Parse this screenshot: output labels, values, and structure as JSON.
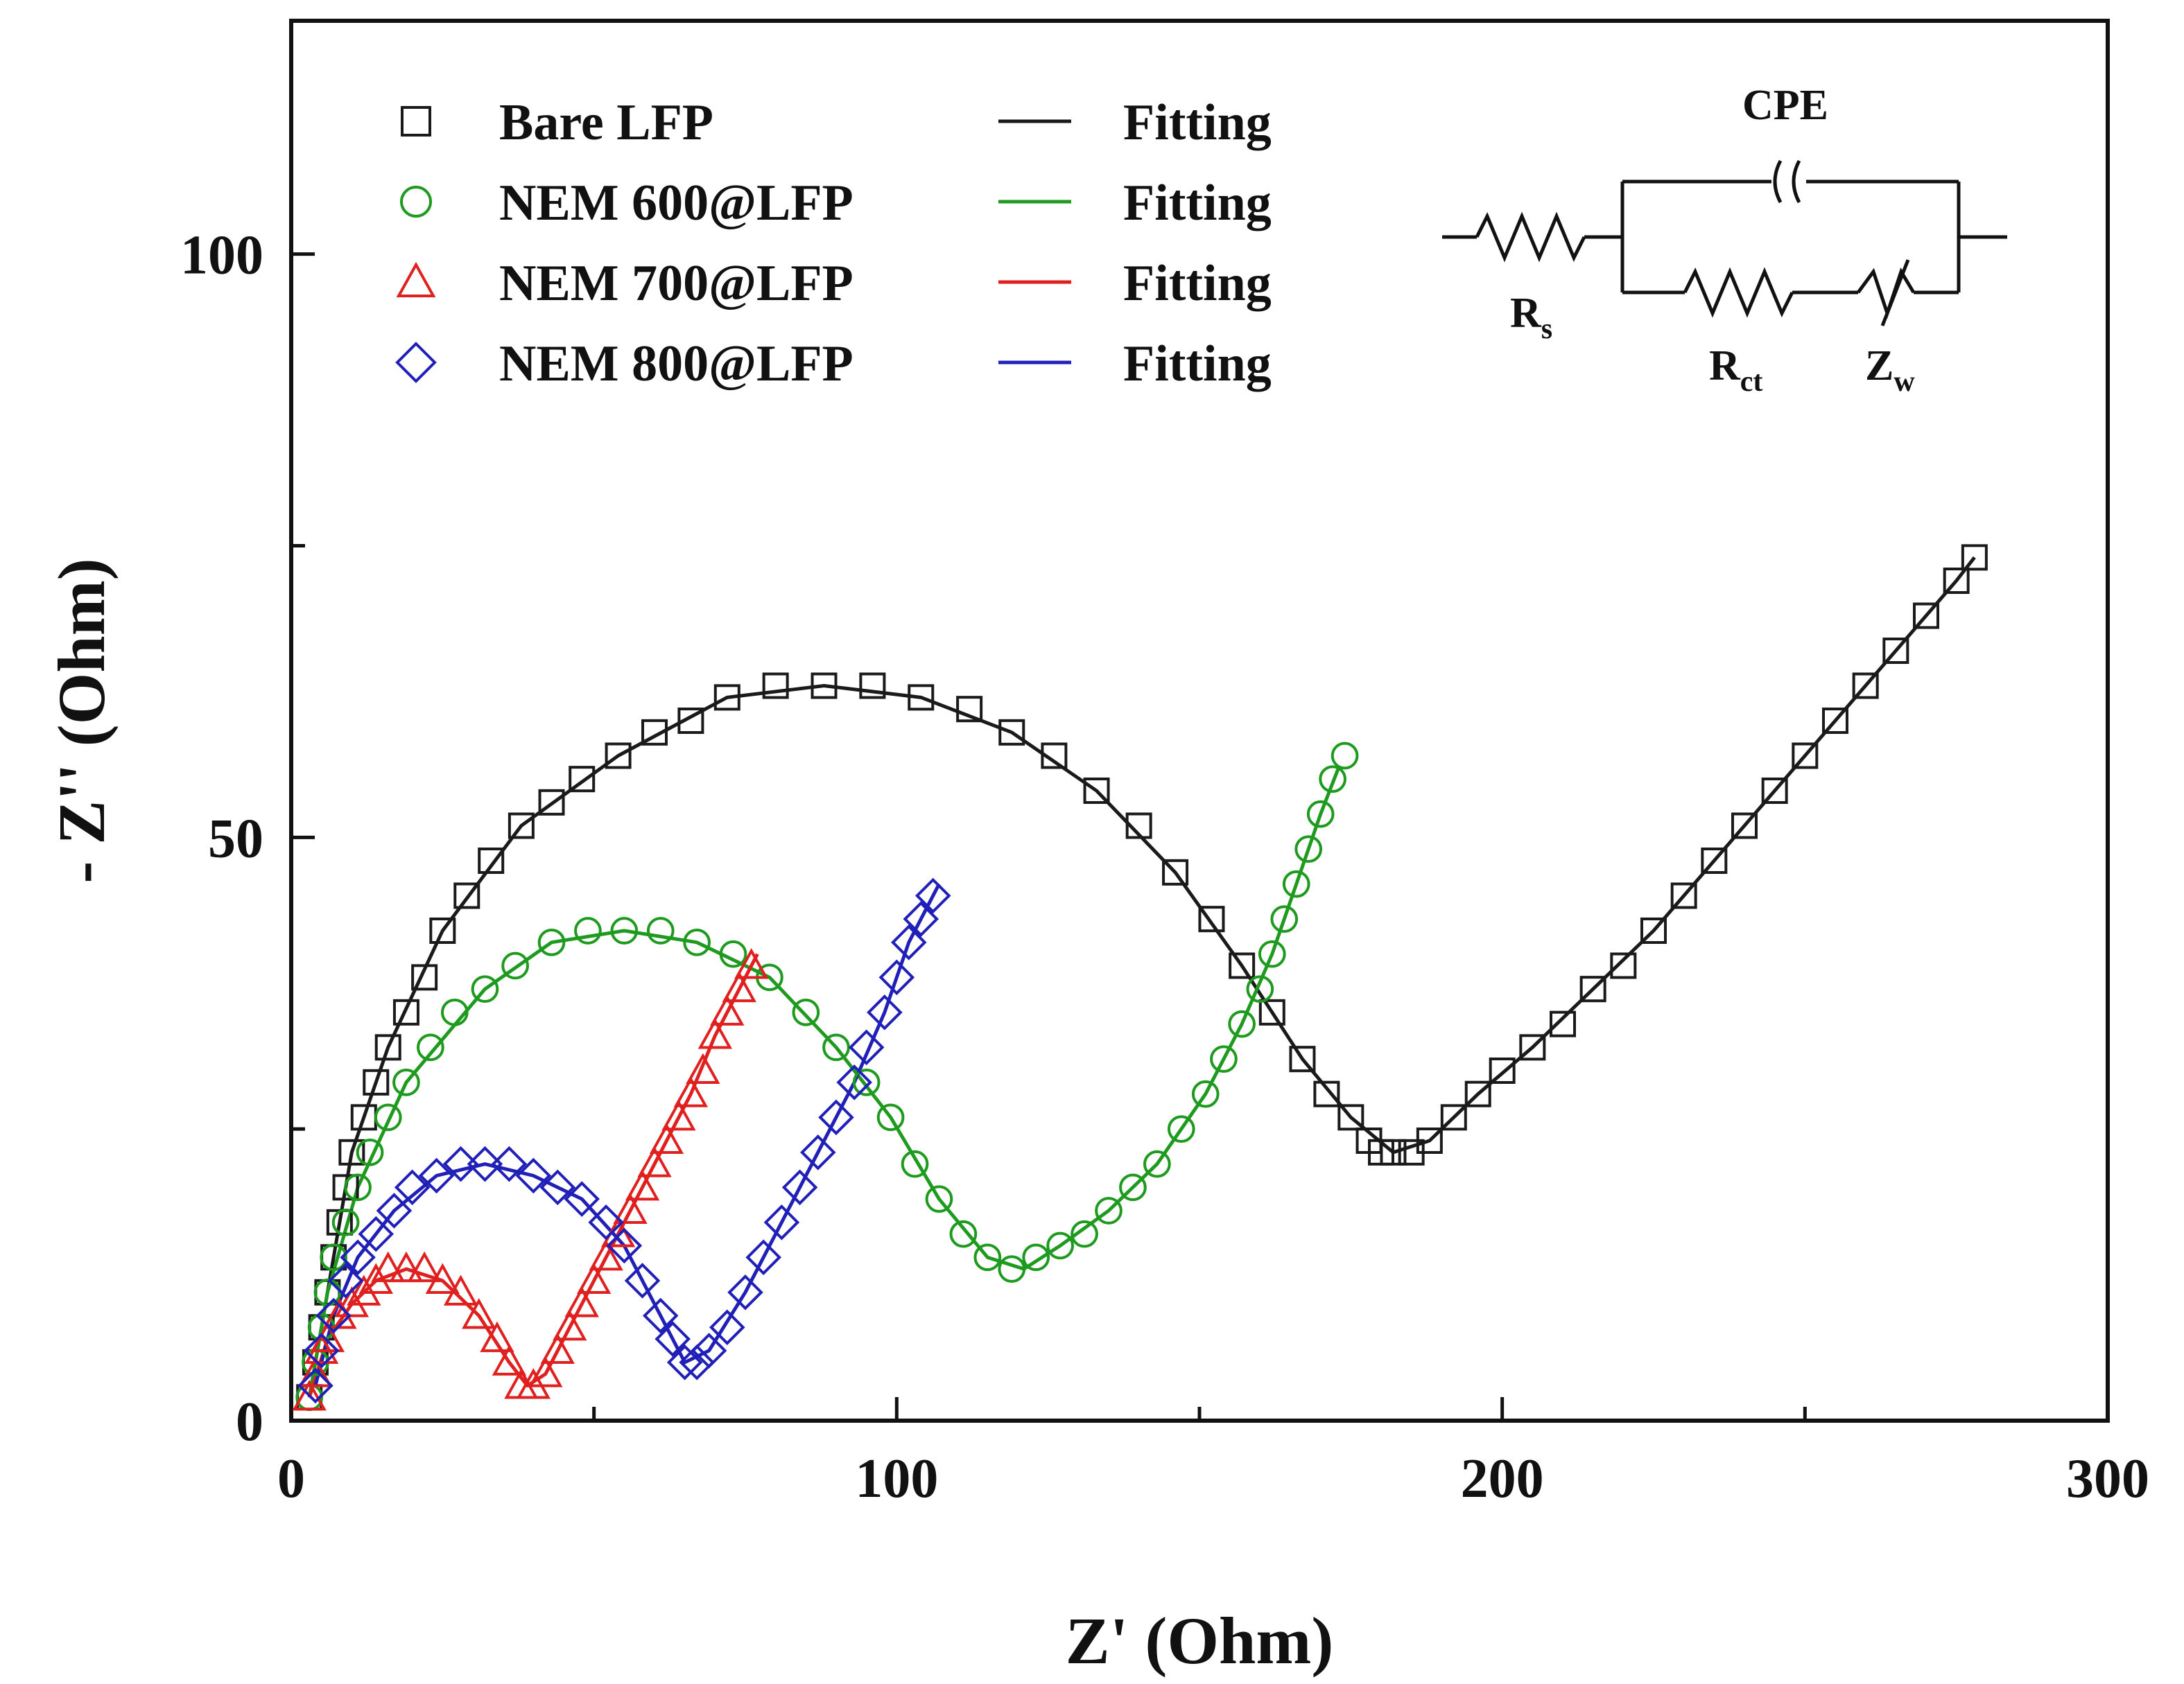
{
  "chart_data": {
    "type": "scatter",
    "xlabel": "Z' (Ohm)",
    "ylabel": "- Z'' (Ohm)",
    "xlim": [
      0,
      300
    ],
    "ylim": [
      0,
      120
    ],
    "x_ticks": [
      0,
      100,
      200,
      300
    ],
    "y_ticks": [
      0,
      50,
      100
    ],
    "legend_position": "top-left",
    "fitting_label": "Fitting",
    "series": [
      {
        "name": "Bare LFP",
        "marker": "square",
        "color": "#1a1a1a",
        "points": [
          [
            3,
            2
          ],
          [
            4,
            5
          ],
          [
            5,
            8
          ],
          [
            6,
            11
          ],
          [
            7,
            14
          ],
          [
            8,
            17
          ],
          [
            9,
            20
          ],
          [
            10,
            23
          ],
          [
            12,
            26
          ],
          [
            14,
            29
          ],
          [
            16,
            32
          ],
          [
            19,
            35
          ],
          [
            22,
            38
          ],
          [
            25,
            42
          ],
          [
            29,
            45
          ],
          [
            33,
            48
          ],
          [
            38,
            51
          ],
          [
            43,
            53
          ],
          [
            48,
            55
          ],
          [
            54,
            57
          ],
          [
            60,
            59
          ],
          [
            66,
            60
          ],
          [
            72,
            62
          ],
          [
            80,
            63
          ],
          [
            88,
            63
          ],
          [
            96,
            63
          ],
          [
            104,
            62
          ],
          [
            112,
            61
          ],
          [
            119,
            59
          ],
          [
            126,
            57
          ],
          [
            133,
            54
          ],
          [
            140,
            51
          ],
          [
            146,
            47
          ],
          [
            152,
            43
          ],
          [
            157,
            39
          ],
          [
            162,
            35
          ],
          [
            167,
            31
          ],
          [
            171,
            28
          ],
          [
            175,
            26
          ],
          [
            178,
            24
          ],
          [
            180,
            23
          ],
          [
            182,
            23
          ],
          [
            185,
            23
          ],
          [
            188,
            24
          ],
          [
            192,
            26
          ],
          [
            196,
            28
          ],
          [
            200,
            30
          ],
          [
            205,
            32
          ],
          [
            210,
            34
          ],
          [
            215,
            37
          ],
          [
            220,
            39
          ],
          [
            225,
            42
          ],
          [
            230,
            45
          ],
          [
            235,
            48
          ],
          [
            240,
            51
          ],
          [
            245,
            54
          ],
          [
            250,
            57
          ],
          [
            255,
            60
          ],
          [
            260,
            63
          ],
          [
            265,
            66
          ],
          [
            270,
            69
          ],
          [
            275,
            72
          ],
          [
            278,
            74
          ]
        ],
        "fit": [
          [
            3,
            2
          ],
          [
            6,
            11
          ],
          [
            10,
            23
          ],
          [
            16,
            32
          ],
          [
            25,
            42
          ],
          [
            38,
            51
          ],
          [
            54,
            57
          ],
          [
            72,
            62
          ],
          [
            88,
            63
          ],
          [
            104,
            62
          ],
          [
            119,
            59
          ],
          [
            133,
            54
          ],
          [
            146,
            47
          ],
          [
            157,
            39
          ],
          [
            167,
            31
          ],
          [
            175,
            26
          ],
          [
            182,
            23
          ],
          [
            188,
            24
          ],
          [
            196,
            28
          ],
          [
            205,
            32
          ],
          [
            215,
            37
          ],
          [
            225,
            42
          ],
          [
            235,
            48
          ],
          [
            245,
            54
          ],
          [
            255,
            60
          ],
          [
            265,
            66
          ],
          [
            275,
            72
          ],
          [
            278,
            74
          ]
        ]
      },
      {
        "name": "NEM 600@LFP",
        "marker": "circle",
        "color": "#1e9a1e",
        "points": [
          [
            3,
            2
          ],
          [
            4,
            5
          ],
          [
            5,
            8
          ],
          [
            6,
            11
          ],
          [
            7,
            14
          ],
          [
            9,
            17
          ],
          [
            11,
            20
          ],
          [
            13,
            23
          ],
          [
            16,
            26
          ],
          [
            19,
            29
          ],
          [
            23,
            32
          ],
          [
            27,
            35
          ],
          [
            32,
            37
          ],
          [
            37,
            39
          ],
          [
            43,
            41
          ],
          [
            49,
            42
          ],
          [
            55,
            42
          ],
          [
            61,
            42
          ],
          [
            67,
            41
          ],
          [
            73,
            40
          ],
          [
            79,
            38
          ],
          [
            85,
            35
          ],
          [
            90,
            32
          ],
          [
            95,
            29
          ],
          [
            99,
            26
          ],
          [
            103,
            22
          ],
          [
            107,
            19
          ],
          [
            111,
            16
          ],
          [
            115,
            14
          ],
          [
            119,
            13
          ],
          [
            123,
            14
          ],
          [
            127,
            15
          ],
          [
            131,
            16
          ],
          [
            135,
            18
          ],
          [
            139,
            20
          ],
          [
            143,
            22
          ],
          [
            147,
            25
          ],
          [
            151,
            28
          ],
          [
            154,
            31
          ],
          [
            157,
            34
          ],
          [
            160,
            37
          ],
          [
            162,
            40
          ],
          [
            164,
            43
          ],
          [
            166,
            46
          ],
          [
            168,
            49
          ],
          [
            170,
            52
          ],
          [
            172,
            55
          ],
          [
            174,
            57
          ]
        ],
        "fit": [
          [
            3,
            2
          ],
          [
            6,
            11
          ],
          [
            11,
            20
          ],
          [
            19,
            29
          ],
          [
            32,
            37
          ],
          [
            43,
            41
          ],
          [
            55,
            42
          ],
          [
            67,
            41
          ],
          [
            79,
            38
          ],
          [
            90,
            32
          ],
          [
            99,
            26
          ],
          [
            107,
            19
          ],
          [
            115,
            14
          ],
          [
            121,
            13
          ],
          [
            127,
            15
          ],
          [
            135,
            18
          ],
          [
            143,
            22
          ],
          [
            151,
            28
          ],
          [
            157,
            34
          ],
          [
            162,
            40
          ],
          [
            166,
            46
          ],
          [
            170,
            52
          ],
          [
            173,
            56
          ]
        ]
      },
      {
        "name": "NEM 700@LFP",
        "marker": "triangle",
        "color": "#e01f1f",
        "points": [
          [
            3,
            2
          ],
          [
            4,
            4
          ],
          [
            5,
            6
          ],
          [
            6,
            7
          ],
          [
            8,
            9
          ],
          [
            10,
            10
          ],
          [
            12,
            11
          ],
          [
            14,
            12
          ],
          [
            16,
            13
          ],
          [
            19,
            13
          ],
          [
            22,
            13
          ],
          [
            25,
            12
          ],
          [
            28,
            11
          ],
          [
            31,
            9
          ],
          [
            34,
            7
          ],
          [
            36,
            5
          ],
          [
            38,
            3
          ],
          [
            40,
            3
          ],
          [
            42,
            4
          ],
          [
            44,
            6
          ],
          [
            46,
            8
          ],
          [
            48,
            10
          ],
          [
            50,
            12
          ],
          [
            52,
            14
          ],
          [
            54,
            16
          ],
          [
            56,
            18
          ],
          [
            58,
            20
          ],
          [
            60,
            22
          ],
          [
            62,
            24
          ],
          [
            64,
            26
          ],
          [
            66,
            28
          ],
          [
            68,
            30
          ],
          [
            70,
            33
          ],
          [
            72,
            35
          ],
          [
            74,
            37
          ],
          [
            76,
            39
          ]
        ],
        "fit": [
          [
            3,
            2
          ],
          [
            6,
            7
          ],
          [
            10,
            10
          ],
          [
            14,
            12
          ],
          [
            19,
            13
          ],
          [
            25,
            12
          ],
          [
            31,
            9
          ],
          [
            36,
            5
          ],
          [
            39,
            3
          ],
          [
            42,
            4
          ],
          [
            46,
            8
          ],
          [
            50,
            12
          ],
          [
            54,
            16
          ],
          [
            58,
            20
          ],
          [
            62,
            24
          ],
          [
            66,
            28
          ],
          [
            70,
            33
          ],
          [
            74,
            37
          ],
          [
            77,
            40
          ]
        ]
      },
      {
        "name": "NEM 800@LFP",
        "marker": "diamond",
        "color": "#2020b8",
        "points": [
          [
            4,
            3
          ],
          [
            5,
            6
          ],
          [
            7,
            9
          ],
          [
            9,
            12
          ],
          [
            11,
            14
          ],
          [
            14,
            16
          ],
          [
            17,
            18
          ],
          [
            20,
            20
          ],
          [
            24,
            21
          ],
          [
            28,
            22
          ],
          [
            32,
            22
          ],
          [
            36,
            22
          ],
          [
            40,
            21
          ],
          [
            44,
            20
          ],
          [
            48,
            19
          ],
          [
            52,
            17
          ],
          [
            55,
            15
          ],
          [
            58,
            12
          ],
          [
            61,
            9
          ],
          [
            63,
            7
          ],
          [
            65,
            5
          ],
          [
            67,
            5
          ],
          [
            69,
            6
          ],
          [
            72,
            8
          ],
          [
            75,
            11
          ],
          [
            78,
            14
          ],
          [
            81,
            17
          ],
          [
            84,
            20
          ],
          [
            87,
            23
          ],
          [
            90,
            26
          ],
          [
            93,
            29
          ],
          [
            95,
            32
          ],
          [
            98,
            35
          ],
          [
            100,
            38
          ],
          [
            102,
            41
          ],
          [
            104,
            43
          ],
          [
            106,
            45
          ]
        ],
        "fit": [
          [
            4,
            3
          ],
          [
            7,
            9
          ],
          [
            11,
            14
          ],
          [
            17,
            18
          ],
          [
            24,
            21
          ],
          [
            32,
            22
          ],
          [
            40,
            21
          ],
          [
            48,
            19
          ],
          [
            55,
            15
          ],
          [
            61,
            9
          ],
          [
            65,
            5
          ],
          [
            69,
            6
          ],
          [
            75,
            11
          ],
          [
            81,
            17
          ],
          [
            87,
            23
          ],
          [
            93,
            29
          ],
          [
            98,
            35
          ],
          [
            102,
            41
          ],
          [
            107,
            46
          ]
        ]
      }
    ],
    "inset_circuit": {
      "title": "CPE",
      "labels": {
        "rs_main": "R",
        "rs_sub": "s",
        "rct_main": "R",
        "rct_sub": "ct",
        "zw_main": "Z",
        "zw_sub": "w"
      }
    }
  }
}
